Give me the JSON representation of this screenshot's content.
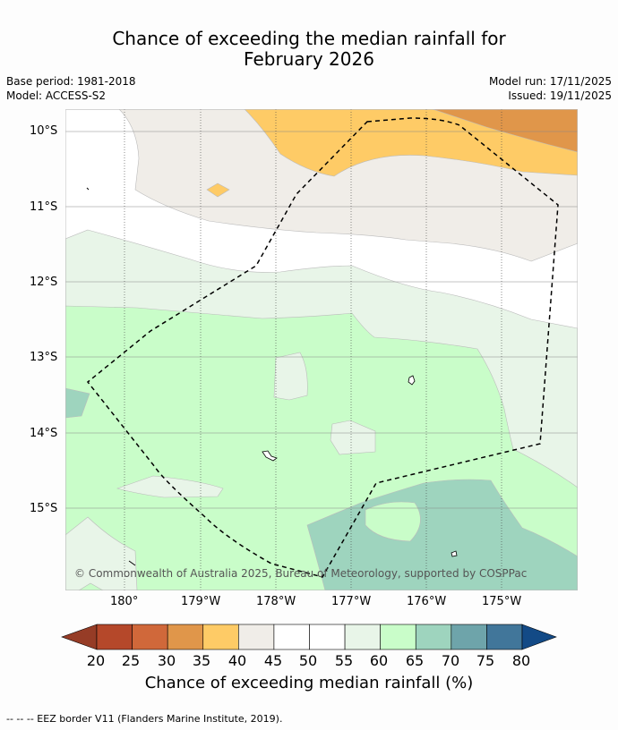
{
  "title": {
    "line1": "Chance of exceeding the median rainfall for",
    "line2": "February 2026"
  },
  "meta": {
    "base_period": "Base period: 1981-2018",
    "model": "Model: ACCESS-S2",
    "model_run": "Model run: 17/11/2025",
    "issued": "Issued: 19/11/2025"
  },
  "map": {
    "lat_labels": [
      "10°S",
      "11°S",
      "12°S",
      "13°S",
      "14°S",
      "15°S"
    ],
    "lon_labels": [
      "180°",
      "179°W",
      "178°W",
      "177°W",
      "176°W",
      "175°W"
    ],
    "copyright": "© Commonwealth of Australia 2025, Bureau of Meteorology, supported by COSPPac"
  },
  "colorbar": {
    "ticks": [
      "20",
      "25",
      "30",
      "35",
      "40",
      "45",
      "50",
      "55",
      "60",
      "65",
      "70",
      "75",
      "80"
    ],
    "colors": [
      "#b5482a",
      "#d0683a",
      "#e0964a",
      "#fecb66",
      "#f0ede8",
      "#ffffff",
      "#ffffff",
      "#e8f5e8",
      "#c9fdc9",
      "#9ed4be",
      "#6ea4aa",
      "#41769a"
    ],
    "under_color": "#963c26",
    "over_color": "#134a86",
    "label": "Chance of exceeding median rainfall (%)"
  },
  "footnote": "--  --  -- EEZ border V11 (Flanders Marine Institute, 2019)."
}
